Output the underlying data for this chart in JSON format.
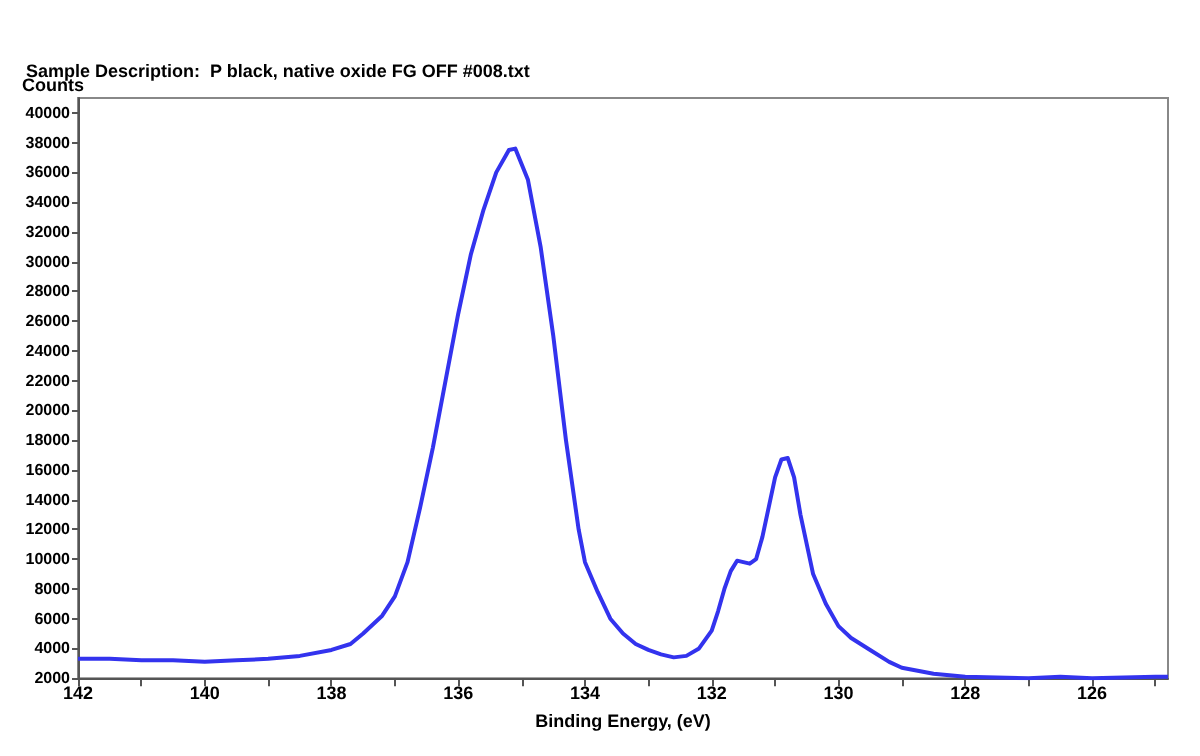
{
  "chart_data": {
    "type": "line",
    "title": "Sample Description:  P black, native oxide FG OFF #008.txt",
    "ylabel": "Counts",
    "xlabel": "Binding Energy, (eV)",
    "x": [
      142,
      141.5,
      141,
      140.5,
      140,
      139.5,
      139,
      138.5,
      138,
      137.7,
      137.5,
      137.2,
      137,
      136.8,
      136.6,
      136.4,
      136.2,
      136,
      135.8,
      135.6,
      135.4,
      135.2,
      135.1,
      134.9,
      134.7,
      134.5,
      134.3,
      134.1,
      134,
      133.8,
      133.6,
      133.4,
      133.2,
      133,
      132.8,
      132.6,
      132.4,
      132.2,
      132,
      131.9,
      131.8,
      131.7,
      131.6,
      131.5,
      131.4,
      131.3,
      131.2,
      131.1,
      131,
      130.9,
      130.8,
      130.7,
      130.6,
      130.4,
      130.2,
      130,
      129.8,
      129.5,
      129.2,
      129,
      128.5,
      128,
      127,
      126.5,
      126,
      125,
      124.8
    ],
    "series": [
      {
        "color": "#3333ee",
        "values": [
          3300,
          3300,
          3200,
          3200,
          3100,
          3200,
          3300,
          3500,
          3900,
          4300,
          5000,
          6200,
          7500,
          9800,
          13500,
          17500,
          22000,
          26500,
          30500,
          33500,
          36000,
          37500,
          37600,
          35500,
          31000,
          25000,
          18000,
          12000,
          9800,
          7800,
          6000,
          5000,
          4300,
          3900,
          3600,
          3400,
          3500,
          4000,
          5200,
          6500,
          8000,
          9200,
          9900,
          9800,
          9700,
          10000,
          11500,
          13500,
          15500,
          16700,
          16800,
          15500,
          13000,
          9000,
          7000,
          5500,
          4700,
          3900,
          3100,
          2700,
          2300,
          2100,
          2000,
          2100,
          2000,
          2100,
          2100
        ]
      }
    ],
    "xlim": [
      142,
      124.8
    ],
    "xticks": [
      142,
      {
        "value": 141,
        "label": null
      },
      140,
      {
        "value": 139,
        "label": null
      },
      138,
      {
        "value": 137,
        "label": null
      },
      136,
      {
        "value": 135,
        "label": null
      },
      134,
      {
        "value": 133,
        "label": null
      },
      132,
      {
        "value": 131,
        "label": null
      },
      130,
      {
        "value": 129,
        "label": null
      },
      128,
      {
        "value": 127,
        "label": null
      },
      126,
      {
        "value": 125,
        "label": null
      }
    ],
    "ylim": [
      2000,
      41000
    ],
    "yticks": [
      2000,
      4000,
      6000,
      8000,
      10000,
      12000,
      14000,
      16000,
      18000,
      20000,
      22000,
      24000,
      26000,
      28000,
      30000,
      32000,
      34000,
      36000,
      38000,
      40000
    ],
    "grid": false,
    "marker": "none",
    "line_style": "solid"
  }
}
